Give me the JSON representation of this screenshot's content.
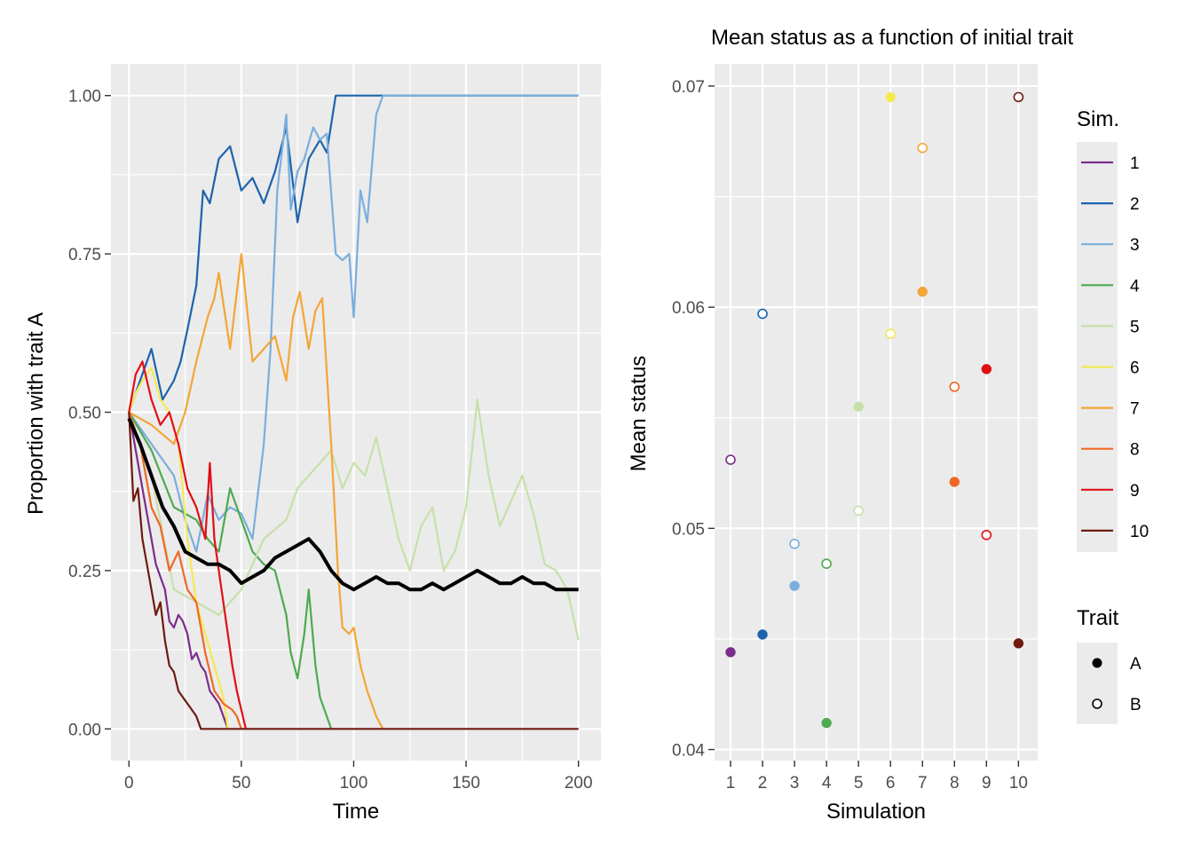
{
  "colors": {
    "panel": "#EBEBEB",
    "grid": "#FFFFFF",
    "mean_line": "#000000",
    "sims": [
      "#7B2D8B",
      "#1C63AE",
      "#7AAEDD",
      "#4EAA50",
      "#C6E0AA",
      "#F4EA52",
      "#F4A537",
      "#EF6826",
      "#E00F17",
      "#6F1A10"
    ]
  },
  "chart_data": [
    {
      "type": "line",
      "title": "",
      "xlabel": "Time",
      "ylabel": "Proportion with trait A",
      "xlim": [
        -8,
        210
      ],
      "ylim": [
        -0.05,
        1.05
      ],
      "xticks": [
        0,
        50,
        100,
        150,
        200
      ],
      "xtick_labels": [
        "0",
        "50",
        "100",
        "150",
        "200"
      ],
      "yticks": [
        0,
        0.25,
        0.5,
        0.75,
        1
      ],
      "ytick_labels": [
        "0.00",
        "0.25",
        "0.50",
        "0.75",
        "1.00"
      ],
      "grid": true,
      "legend": "none",
      "series": [
        {
          "name": "1",
          "x": [
            0,
            3,
            5,
            8,
            10,
            12,
            14,
            16,
            18,
            20,
            22,
            24,
            26,
            28,
            30,
            32,
            34,
            36,
            38,
            40,
            42,
            44
          ],
          "y": [
            0.5,
            0.44,
            0.4,
            0.34,
            0.3,
            0.26,
            0.24,
            0.22,
            0.17,
            0.16,
            0.18,
            0.17,
            0.15,
            0.11,
            0.12,
            0.1,
            0.09,
            0.06,
            0.05,
            0.04,
            0.02,
            0.0
          ]
        },
        {
          "name": "2",
          "x": [
            0,
            5,
            10,
            15,
            20,
            23,
            26,
            30,
            33,
            36,
            40,
            45,
            50,
            55,
            60,
            65,
            70,
            75,
            80,
            85,
            88,
            92,
            95,
            100,
            200
          ],
          "y": [
            0.5,
            0.55,
            0.6,
            0.52,
            0.55,
            0.58,
            0.63,
            0.7,
            0.85,
            0.83,
            0.9,
            0.92,
            0.85,
            0.87,
            0.83,
            0.88,
            0.95,
            0.8,
            0.9,
            0.93,
            0.91,
            1.0,
            1.0,
            1.0,
            1.0
          ]
        },
        {
          "name": "3",
          "x": [
            0,
            10,
            20,
            25,
            30,
            35,
            40,
            45,
            50,
            55,
            60,
            63,
            66,
            70,
            72,
            75,
            78,
            82,
            85,
            88,
            92,
            95,
            98,
            100,
            103,
            106,
            110,
            113,
            200
          ],
          "y": [
            0.5,
            0.45,
            0.4,
            0.33,
            0.28,
            0.37,
            0.33,
            0.35,
            0.34,
            0.3,
            0.45,
            0.6,
            0.85,
            0.97,
            0.82,
            0.88,
            0.9,
            0.95,
            0.93,
            0.94,
            0.75,
            0.74,
            0.75,
            0.65,
            0.85,
            0.8,
            0.97,
            1.0,
            1.0
          ]
        },
        {
          "name": "4",
          "x": [
            0,
            10,
            20,
            30,
            35,
            40,
            45,
            50,
            55,
            60,
            65,
            70,
            72,
            75,
            78,
            80,
            83,
            85,
            87,
            90
          ],
          "y": [
            0.5,
            0.44,
            0.35,
            0.33,
            0.3,
            0.28,
            0.38,
            0.33,
            0.28,
            0.26,
            0.25,
            0.18,
            0.12,
            0.08,
            0.15,
            0.22,
            0.1,
            0.05,
            0.03,
            0.0
          ]
        },
        {
          "name": "5",
          "x": [
            0,
            10,
            20,
            30,
            40,
            50,
            60,
            70,
            75,
            80,
            85,
            90,
            95,
            100,
            105,
            110,
            115,
            120,
            125,
            130,
            135,
            140,
            145,
            150,
            155,
            160,
            165,
            170,
            175,
            180,
            185,
            190,
            195,
            200
          ],
          "y": [
            0.5,
            0.4,
            0.22,
            0.2,
            0.18,
            0.22,
            0.3,
            0.33,
            0.38,
            0.4,
            0.42,
            0.44,
            0.38,
            0.42,
            0.4,
            0.46,
            0.38,
            0.3,
            0.25,
            0.32,
            0.35,
            0.25,
            0.28,
            0.35,
            0.52,
            0.4,
            0.32,
            0.36,
            0.4,
            0.34,
            0.26,
            0.25,
            0.22,
            0.14
          ]
        },
        {
          "name": "6",
          "x": [
            0,
            3,
            6,
            10,
            14,
            18,
            22,
            26,
            30,
            34,
            38,
            42,
            44
          ],
          "y": [
            0.5,
            0.53,
            0.55,
            0.57,
            0.52,
            0.5,
            0.45,
            0.3,
            0.2,
            0.15,
            0.1,
            0.05,
            0.0
          ]
        },
        {
          "name": "7",
          "x": [
            0,
            10,
            20,
            25,
            30,
            35,
            38,
            40,
            45,
            50,
            55,
            60,
            65,
            70,
            73,
            76,
            80,
            83,
            86,
            90,
            93,
            95,
            98,
            100,
            103,
            106,
            110,
            113
          ],
          "y": [
            0.5,
            0.48,
            0.45,
            0.5,
            0.58,
            0.65,
            0.68,
            0.72,
            0.6,
            0.75,
            0.58,
            0.6,
            0.62,
            0.55,
            0.65,
            0.69,
            0.6,
            0.66,
            0.68,
            0.45,
            0.25,
            0.16,
            0.15,
            0.16,
            0.1,
            0.06,
            0.02,
            0.0
          ]
        },
        {
          "name": "8",
          "x": [
            0,
            5,
            10,
            14,
            18,
            22,
            26,
            30,
            34,
            38,
            42,
            46,
            48,
            50
          ],
          "y": [
            0.5,
            0.45,
            0.35,
            0.32,
            0.25,
            0.28,
            0.22,
            0.2,
            0.12,
            0.06,
            0.04,
            0.03,
            0.02,
            0.0
          ]
        },
        {
          "name": "9",
          "x": [
            0,
            3,
            6,
            10,
            14,
            18,
            22,
            26,
            30,
            34,
            36,
            38,
            40,
            42,
            44,
            46,
            48,
            50,
            52
          ],
          "y": [
            0.5,
            0.56,
            0.58,
            0.52,
            0.48,
            0.5,
            0.45,
            0.38,
            0.35,
            0.3,
            0.42,
            0.3,
            0.25,
            0.2,
            0.15,
            0.1,
            0.06,
            0.03,
            0.0
          ]
        },
        {
          "name": "10",
          "x": [
            0,
            2,
            4,
            6,
            8,
            10,
            12,
            14,
            16,
            18,
            20,
            22,
            24,
            26,
            28,
            30,
            32,
            200
          ],
          "y": [
            0.5,
            0.36,
            0.38,
            0.3,
            0.26,
            0.22,
            0.18,
            0.2,
            0.14,
            0.1,
            0.09,
            0.06,
            0.05,
            0.04,
            0.03,
            0.02,
            0.0,
            0.0
          ]
        },
        {
          "name": "",
          "role": "mean",
          "x": [
            0,
            5,
            10,
            15,
            20,
            25,
            30,
            35,
            40,
            45,
            50,
            55,
            60,
            65,
            70,
            75,
            80,
            85,
            90,
            95,
            100,
            105,
            110,
            115,
            120,
            125,
            130,
            135,
            140,
            145,
            150,
            155,
            160,
            165,
            170,
            175,
            180,
            185,
            190,
            195,
            200
          ],
          "y": [
            0.49,
            0.45,
            0.4,
            0.35,
            0.32,
            0.28,
            0.27,
            0.26,
            0.26,
            0.25,
            0.23,
            0.24,
            0.25,
            0.27,
            0.28,
            0.29,
            0.3,
            0.28,
            0.25,
            0.23,
            0.22,
            0.23,
            0.24,
            0.23,
            0.23,
            0.22,
            0.22,
            0.23,
            0.22,
            0.23,
            0.24,
            0.25,
            0.24,
            0.23,
            0.23,
            0.24,
            0.23,
            0.23,
            0.22,
            0.22,
            0.22
          ]
        }
      ]
    },
    {
      "type": "scatter",
      "title": "Mean status as a function of initial trait",
      "xlabel": "Simulation",
      "ylabel": "Mean status",
      "xlim": [
        0.5,
        10.6
      ],
      "ylim": [
        0.0395,
        0.071
      ],
      "xticks": [
        1,
        2,
        3,
        4,
        5,
        6,
        7,
        8,
        9,
        10
      ],
      "xtick_labels": [
        "1",
        "2",
        "3",
        "4",
        "5",
        "6",
        "7",
        "8",
        "9",
        "10"
      ],
      "yticks": [
        0.04,
        0.05,
        0.06,
        0.07
      ],
      "ytick_labels": [
        "0.04",
        "0.05",
        "0.06",
        "0.07"
      ],
      "grid": true,
      "legend": "right",
      "series": [
        {
          "name": "A",
          "x": [
            1,
            2,
            3,
            4,
            5,
            6,
            7,
            8,
            9,
            10
          ],
          "y": [
            0.0444,
            0.0452,
            0.0474,
            0.0412,
            0.0555,
            0.0695,
            0.0607,
            0.0521,
            0.0572,
            0.0448
          ]
        },
        {
          "name": "B",
          "x": [
            1,
            2,
            3,
            4,
            5,
            6,
            7,
            8,
            9,
            10
          ],
          "y": [
            0.0531,
            0.0597,
            0.0493,
            0.0484,
            0.0508,
            0.0588,
            0.0672,
            0.0564,
            0.0497,
            0.0695
          ]
        }
      ]
    }
  ],
  "legend": {
    "sim_title": "Sim.",
    "sim_labels": [
      "1",
      "2",
      "3",
      "4",
      "5",
      "6",
      "7",
      "8",
      "9",
      "10"
    ],
    "trait_title": "Trait",
    "trait_labels": [
      "A",
      "B"
    ]
  }
}
